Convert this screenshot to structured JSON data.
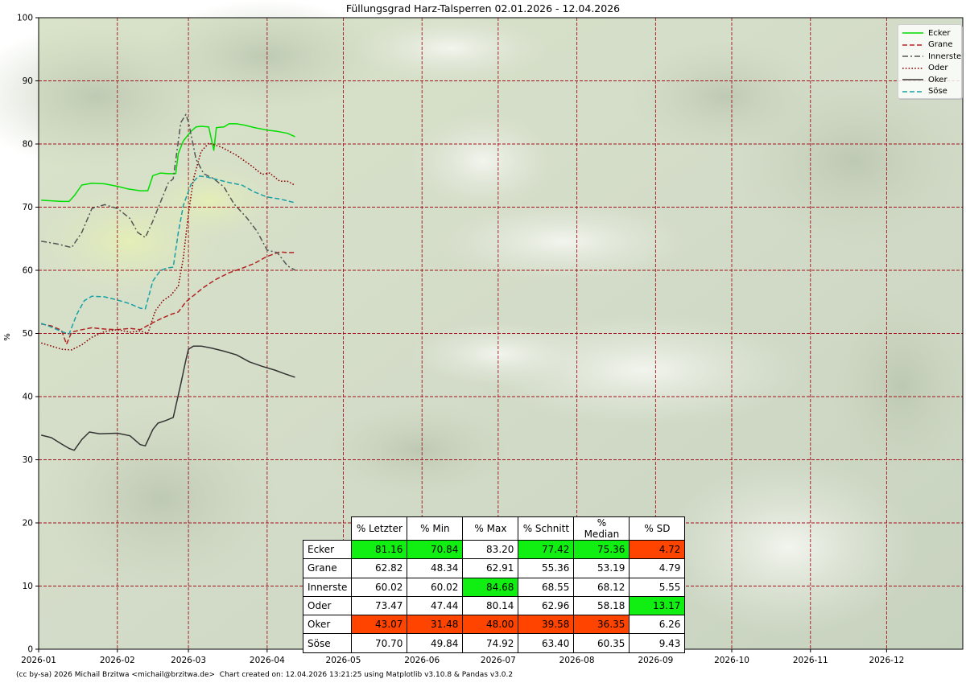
{
  "footer": "(cc by-sa) 2026 Michail Brzitwa <michail@brzitwa.de>  Chart created on: 12.04.2026 13:21:25 using Matplotlib v3.10.8 & Pandas v3.0.2",
  "chart_data": {
    "type": "line",
    "title": "Füllungsgrad Harz-Talsperren 02.01.2026 - 12.04.2026",
    "xlabel": "",
    "ylabel": "%",
    "ylim": [
      0,
      100
    ],
    "xlim": [
      "2026-01-01",
      "2026-12-31"
    ],
    "x_ticks": [
      "2026-01",
      "2026-02",
      "2026-03",
      "2026-04",
      "2026-05",
      "2026-06",
      "2026-07",
      "2026-08",
      "2026-09",
      "2026-10",
      "2026-11",
      "2026-12"
    ],
    "y_ticks": [
      0,
      10,
      20,
      30,
      40,
      50,
      60,
      70,
      80,
      90,
      100
    ],
    "grid": true,
    "legend_position": "top-right",
    "background": "photo of a mountain stream with mossy rocks (faded)",
    "series": [
      {
        "name": "Ecker",
        "color": "#00dd00",
        "style": "solid",
        "x": [
          "2026-01-02",
          "2026-01-06",
          "2026-01-10",
          "2026-01-13",
          "2026-01-15",
          "2026-01-18",
          "2026-01-22",
          "2026-01-27",
          "2026-02-01",
          "2026-02-05",
          "2026-02-10",
          "2026-02-13",
          "2026-02-15",
          "2026-02-18",
          "2026-02-21",
          "2026-02-24",
          "2026-02-25",
          "2026-02-27",
          "2026-03-02",
          "2026-03-04",
          "2026-03-06",
          "2026-03-09",
          "2026-03-11",
          "2026-03-12",
          "2026-03-15",
          "2026-03-17",
          "2026-03-20",
          "2026-03-23",
          "2026-03-27",
          "2026-04-01",
          "2026-04-05",
          "2026-04-09",
          "2026-04-12"
        ],
        "y": [
          71.1,
          71.0,
          70.9,
          70.9,
          71.8,
          73.5,
          73.8,
          73.7,
          73.3,
          72.9,
          72.6,
          72.6,
          75.0,
          75.4,
          75.3,
          75.3,
          78.5,
          80.5,
          82.0,
          82.7,
          82.8,
          82.7,
          79.0,
          82.6,
          82.7,
          83.2,
          83.2,
          83.0,
          82.6,
          82.2,
          82.0,
          81.7,
          81.16
        ]
      },
      {
        "name": "Grane",
        "color": "#b22222",
        "style": "dashed",
        "x": [
          "2026-01-02",
          "2026-01-06",
          "2026-01-10",
          "2026-01-12",
          "2026-01-14",
          "2026-01-18",
          "2026-01-22",
          "2026-01-27",
          "2026-02-01",
          "2026-02-06",
          "2026-02-10",
          "2026-02-14",
          "2026-02-18",
          "2026-02-22",
          "2026-02-25",
          "2026-02-28",
          "2026-03-03",
          "2026-03-07",
          "2026-03-12",
          "2026-03-17",
          "2026-03-22",
          "2026-03-27",
          "2026-04-01",
          "2026-04-06",
          "2026-04-09",
          "2026-04-12"
        ],
        "y": [
          51.5,
          51.2,
          50.5,
          48.3,
          50.2,
          50.6,
          50.9,
          50.7,
          50.6,
          50.8,
          50.6,
          51.5,
          52.3,
          53.0,
          53.4,
          55.0,
          56.0,
          57.3,
          58.6,
          59.6,
          60.3,
          61.1,
          62.2,
          62.9,
          62.8,
          62.82
        ]
      },
      {
        "name": "Innerste",
        "color": "#555555",
        "style": "dashdot",
        "x": [
          "2026-01-02",
          "2026-01-08",
          "2026-01-14",
          "2026-01-18",
          "2026-01-22",
          "2026-01-27",
          "2026-02-01",
          "2026-02-06",
          "2026-02-09",
          "2026-02-12",
          "2026-02-15",
          "2026-02-19",
          "2026-02-21",
          "2026-02-23",
          "2026-02-26",
          "2026-02-28",
          "2026-03-01",
          "2026-03-04",
          "2026-03-07",
          "2026-03-11",
          "2026-03-15",
          "2026-03-19",
          "2026-03-24",
          "2026-03-28",
          "2026-04-01",
          "2026-04-05",
          "2026-04-09",
          "2026-04-12"
        ],
        "y": [
          64.6,
          64.2,
          63.6,
          66.0,
          69.8,
          70.4,
          69.8,
          68.2,
          66.0,
          65.2,
          67.8,
          71.8,
          73.8,
          74.5,
          83.4,
          84.68,
          83.5,
          77.6,
          75.3,
          74.5,
          73.2,
          70.5,
          68.3,
          66.2,
          63.2,
          62.8,
          60.7,
          60.02
        ]
      },
      {
        "name": "Oder",
        "color": "#8b0000",
        "style": "dotted",
        "x": [
          "2026-01-02",
          "2026-01-06",
          "2026-01-10",
          "2026-01-14",
          "2026-01-18",
          "2026-01-22",
          "2026-01-27",
          "2026-02-01",
          "2026-02-06",
          "2026-02-10",
          "2026-02-13",
          "2026-02-16",
          "2026-02-19",
          "2026-02-22",
          "2026-02-25",
          "2026-02-27",
          "2026-03-01",
          "2026-03-03",
          "2026-03-06",
          "2026-03-09",
          "2026-03-14",
          "2026-03-20",
          "2026-03-26",
          "2026-03-30",
          "2026-04-02",
          "2026-04-06",
          "2026-04-09",
          "2026-04-12"
        ],
        "y": [
          48.5,
          48.0,
          47.5,
          47.4,
          48.2,
          49.4,
          50.3,
          50.6,
          50.2,
          50.4,
          50.0,
          53.6,
          55.2,
          56.0,
          57.5,
          62.0,
          69.0,
          74.5,
          78.8,
          80.14,
          79.5,
          78.2,
          76.5,
          75.2,
          75.4,
          74.1,
          74.1,
          73.47
        ]
      },
      {
        "name": "Oker",
        "color": "#333333",
        "style": "solid",
        "x": [
          "2026-01-02",
          "2026-01-06",
          "2026-01-10",
          "2026-01-13",
          "2026-01-15",
          "2026-01-18",
          "2026-01-21",
          "2026-01-25",
          "2026-02-01",
          "2026-02-06",
          "2026-02-10",
          "2026-02-12",
          "2026-02-15",
          "2026-02-17",
          "2026-02-20",
          "2026-02-23",
          "2026-02-26",
          "2026-02-28",
          "2026-03-01",
          "2026-03-03",
          "2026-03-06",
          "2026-03-10",
          "2026-03-15",
          "2026-03-20",
          "2026-03-25",
          "2026-03-30",
          "2026-04-04",
          "2026-04-08",
          "2026-04-12"
        ],
        "y": [
          33.9,
          33.5,
          32.5,
          31.8,
          31.5,
          33.2,
          34.4,
          34.1,
          34.2,
          33.8,
          32.4,
          32.2,
          34.8,
          35.8,
          36.2,
          36.7,
          42.0,
          45.8,
          47.5,
          48.0,
          48.0,
          47.7,
          47.2,
          46.6,
          45.5,
          44.8,
          44.2,
          43.6,
          43.07
        ]
      },
      {
        "name": "Söse",
        "color": "#17a0a6",
        "style": "dashed",
        "x": [
          "2026-01-02",
          "2026-01-06",
          "2026-01-10",
          "2026-01-13",
          "2026-01-16",
          "2026-01-19",
          "2026-01-22",
          "2026-01-27",
          "2026-02-01",
          "2026-02-06",
          "2026-02-10",
          "2026-02-12",
          "2026-02-15",
          "2026-02-18",
          "2026-02-21",
          "2026-02-23",
          "2026-02-25",
          "2026-02-27",
          "2026-03-02",
          "2026-03-05",
          "2026-03-08",
          "2026-03-12",
          "2026-03-17",
          "2026-03-22",
          "2026-03-27",
          "2026-04-01",
          "2026-04-06",
          "2026-04-12"
        ],
        "y": [
          51.6,
          51.0,
          50.3,
          49.9,
          53.0,
          55.2,
          55.9,
          55.8,
          55.3,
          54.7,
          54.0,
          53.9,
          58.3,
          60.0,
          60.4,
          60.5,
          66.0,
          70.3,
          73.6,
          74.92,
          74.8,
          74.4,
          73.9,
          73.5,
          72.4,
          71.6,
          71.3,
          70.7
        ]
      }
    ],
    "table": {
      "columns": [
        "% Letzter",
        "% Min",
        "% Max",
        "% Schnitt",
        "% Median",
        "% SD"
      ],
      "rows": [
        {
          "name": "Ecker",
          "values": [
            "81.16",
            "70.84",
            "83.20",
            "77.42",
            "75.36",
            "4.72"
          ],
          "highlight": [
            "green",
            "green",
            "none",
            "green",
            "green",
            "red"
          ]
        },
        {
          "name": "Grane",
          "values": [
            "62.82",
            "48.34",
            "62.91",
            "55.36",
            "53.19",
            "4.79"
          ],
          "highlight": [
            "none",
            "none",
            "none",
            "none",
            "none",
            "none"
          ]
        },
        {
          "name": "Innerste",
          "values": [
            "60.02",
            "60.02",
            "84.68",
            "68.55",
            "68.12",
            "5.55"
          ],
          "highlight": [
            "none",
            "none",
            "green",
            "none",
            "none",
            "none"
          ]
        },
        {
          "name": "Oder",
          "values": [
            "73.47",
            "47.44",
            "80.14",
            "62.96",
            "58.18",
            "13.17"
          ],
          "highlight": [
            "none",
            "none",
            "none",
            "none",
            "none",
            "green"
          ]
        },
        {
          "name": "Oker",
          "values": [
            "43.07",
            "31.48",
            "48.00",
            "39.58",
            "36.35",
            "6.26"
          ],
          "highlight": [
            "red",
            "red",
            "red",
            "red",
            "red",
            "none"
          ]
        },
        {
          "name": "Söse",
          "values": [
            "70.70",
            "49.84",
            "74.92",
            "63.40",
            "60.35",
            "9.43"
          ],
          "highlight": [
            "none",
            "none",
            "none",
            "none",
            "none",
            "none"
          ]
        }
      ],
      "colors": {
        "green": "#11ee11",
        "red": "#ff4400",
        "none": "#ffffff"
      }
    }
  }
}
